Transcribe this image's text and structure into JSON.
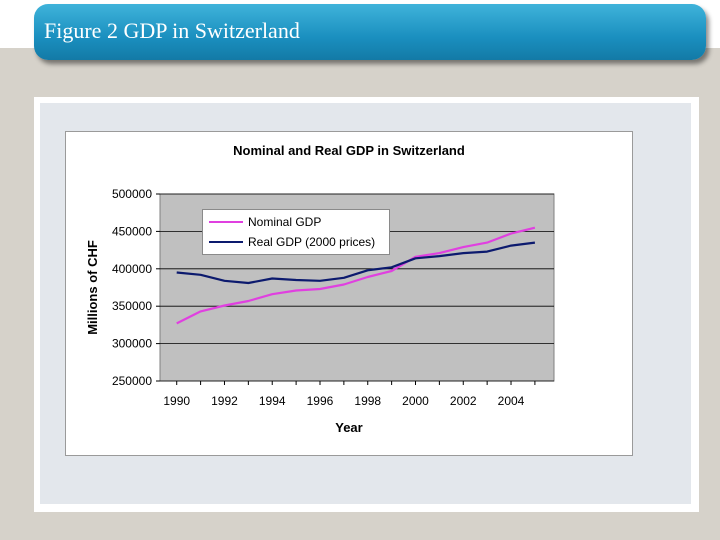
{
  "slide": {
    "title": "Figure 2 GDP in Switzerland"
  },
  "colors": {
    "banner": "#1a8fbf",
    "plot_background": "#c0c0c0"
  },
  "chart_data": {
    "type": "line",
    "title": "Nominal and Real GDP in Switzerland",
    "xlabel": "Year",
    "ylabel": "Millions of CHF",
    "xlim": [
      1989.3,
      2005.8
    ],
    "ylim": [
      250000,
      500000
    ],
    "xticks": [
      "1990",
      "1992",
      "1994",
      "1996",
      "1998",
      "2000",
      "2002",
      "2004"
    ],
    "yticks": [
      "250000",
      "300000",
      "350000",
      "400000",
      "450000",
      "500000"
    ],
    "grid": "horizontal",
    "legend": "top-left",
    "x": [
      1990,
      1991,
      1992,
      1993,
      1994,
      1995,
      1996,
      1997,
      1998,
      1999,
      2000,
      2001,
      2002,
      2003,
      2004,
      2005
    ],
    "series": [
      {
        "name": "Nominal GDP",
        "color": "#e040e0",
        "values": [
          327000,
          343000,
          351000,
          357000,
          366000,
          371000,
          373000,
          379000,
          389000,
          397000,
          416000,
          421000,
          429000,
          435000,
          447000,
          455000
        ]
      },
      {
        "name": "Real GDP (2000 prices)",
        "color": "#0c1a6e",
        "values": [
          395000,
          392000,
          384000,
          381000,
          387000,
          385000,
          384000,
          388000,
          398000,
          402000,
          414000,
          417000,
          421000,
          423000,
          431000,
          435000
        ]
      }
    ]
  }
}
